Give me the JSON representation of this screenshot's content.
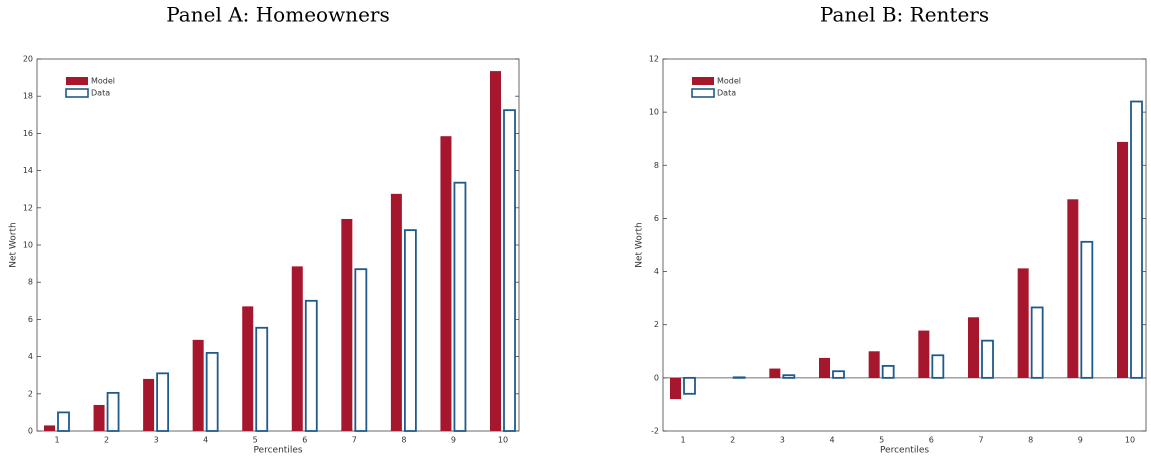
{
  "chart_data": [
    {
      "type": "bar",
      "title": "Panel A: Homeowners",
      "x_label": "Percentiles",
      "y_label": "Net Worth",
      "categories": [
        "1",
        "2",
        "3",
        "4",
        "5",
        "6",
        "7",
        "8",
        "9",
        "10"
      ],
      "series": [
        {
          "name": "Model",
          "color": "#a6172d",
          "values": [
            0.3,
            1.4,
            2.8,
            4.9,
            6.7,
            8.85,
            11.4,
            12.75,
            15.85,
            19.35
          ]
        },
        {
          "name": "Data",
          "color": "#1f5b8a",
          "values": [
            1.0,
            2.05,
            3.1,
            4.2,
            5.55,
            7.0,
            8.7,
            10.8,
            13.35,
            17.25
          ]
        }
      ],
      "ylim": [
        0,
        20
      ],
      "yticks": [
        0,
        2,
        4,
        6,
        8,
        10,
        12,
        14,
        16,
        18,
        20
      ],
      "legend": "upper left"
    },
    {
      "type": "bar",
      "title": "Panel B: Renters",
      "x_label": "Percentiles",
      "y_label": "Net Worth",
      "categories": [
        "1",
        "2",
        "3",
        "4",
        "5",
        "6",
        "7",
        "8",
        "9",
        "10"
      ],
      "series": [
        {
          "name": "Model",
          "color": "#a6172d",
          "values": [
            -0.8,
            0,
            0.35,
            0.75,
            1.0,
            1.78,
            2.28,
            4.12,
            6.72,
            8.88
          ]
        },
        {
          "name": "Data",
          "color": "#1f5b8a",
          "values": [
            -0.6,
            0.02,
            0.1,
            0.25,
            0.45,
            0.85,
            1.4,
            2.65,
            5.12,
            10.4
          ]
        }
      ],
      "ylim": [
        -2,
        12
      ],
      "yticks": [
        -2,
        0,
        2,
        4,
        6,
        8,
        10,
        12
      ],
      "legend": "upper left"
    }
  ]
}
